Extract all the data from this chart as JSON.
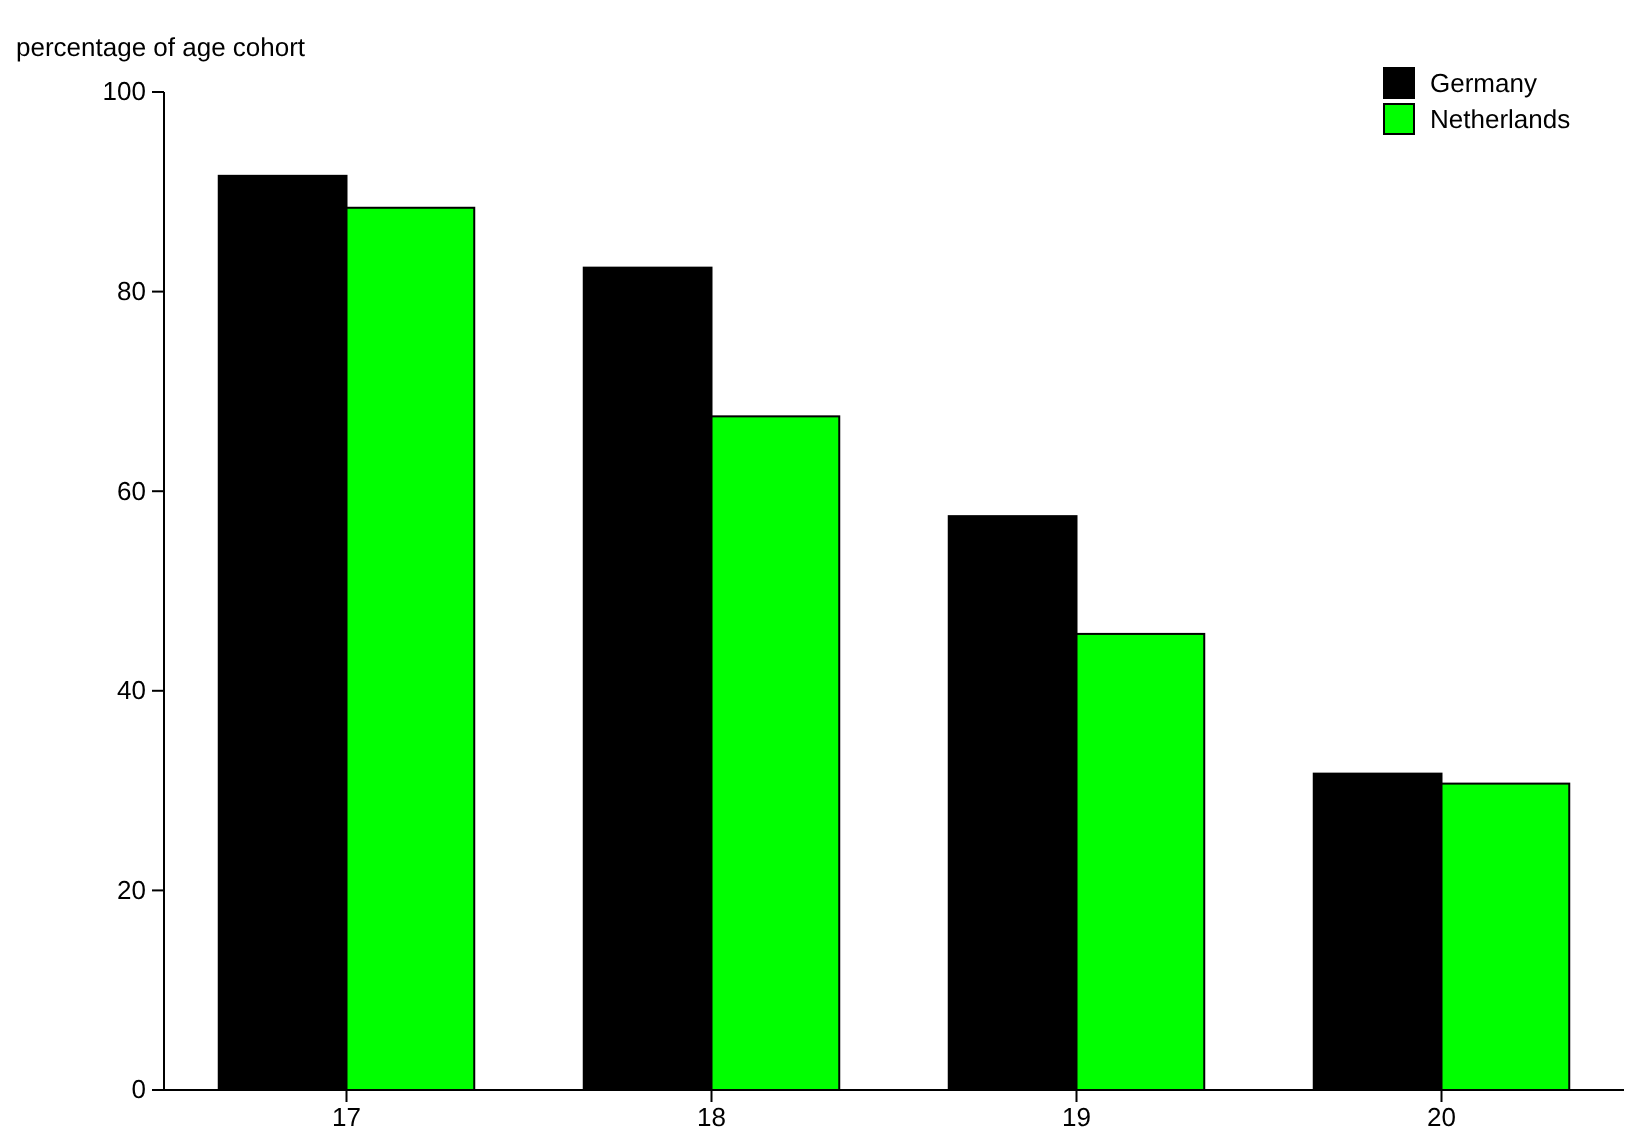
{
  "chart_data": {
    "type": "bar",
    "ylabel": "percentage of age cohort",
    "categories": [
      "17",
      "18",
      "19",
      "20"
    ],
    "series": [
      {
        "name": "Germany",
        "color": "#000000",
        "values": [
          91.6,
          82.4,
          57.5,
          31.7
        ]
      },
      {
        "name": "Netherlands",
        "color": "#00ff00",
        "values": [
          88.4,
          67.5,
          45.7,
          30.7
        ]
      }
    ],
    "ylim": [
      0,
      100
    ],
    "yticks": [
      0,
      20,
      40,
      60,
      80,
      100
    ],
    "grid": false,
    "legend": "top right"
  }
}
